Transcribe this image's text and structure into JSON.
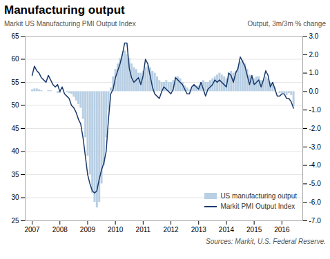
{
  "chart_data": {
    "type": "bar",
    "title": "Manufacturing output",
    "ylabel": "Markit US Manufacturing PMI Output Index",
    "y2label": "Output, 3m/3m % change",
    "source": "Sources: Markit, U.S. Federal Reserve.",
    "x": [
      2007.0,
      2007.083,
      2007.167,
      2007.25,
      2007.333,
      2007.417,
      2007.5,
      2007.583,
      2007.667,
      2007.75,
      2007.833,
      2007.917,
      2008.0,
      2008.083,
      2008.167,
      2008.25,
      2008.333,
      2008.417,
      2008.5,
      2008.583,
      2008.667,
      2008.75,
      2008.833,
      2008.917,
      2009.0,
      2009.083,
      2009.167,
      2009.25,
      2009.333,
      2009.417,
      2009.5,
      2009.583,
      2009.667,
      2009.75,
      2009.833,
      2009.917,
      2010.0,
      2010.083,
      2010.167,
      2010.25,
      2010.333,
      2010.417,
      2010.5,
      2010.583,
      2010.667,
      2010.75,
      2010.833,
      2010.917,
      2011.0,
      2011.083,
      2011.167,
      2011.25,
      2011.333,
      2011.417,
      2011.5,
      2011.583,
      2011.667,
      2011.75,
      2011.833,
      2011.917,
      2012.0,
      2012.083,
      2012.167,
      2012.25,
      2012.333,
      2012.417,
      2012.5,
      2012.583,
      2012.667,
      2012.75,
      2012.833,
      2012.917,
      2013.0,
      2013.083,
      2013.167,
      2013.25,
      2013.333,
      2013.417,
      2013.5,
      2013.583,
      2013.667,
      2013.75,
      2013.833,
      2013.917,
      2014.0,
      2014.083,
      2014.167,
      2014.25,
      2014.333,
      2014.417,
      2014.5,
      2014.583,
      2014.667,
      2014.75,
      2014.833,
      2014.917,
      2015.0,
      2015.083,
      2015.167,
      2015.25,
      2015.333,
      2015.417,
      2015.5,
      2015.583,
      2015.667,
      2015.75,
      2015.833,
      2015.917,
      2016.0,
      2016.083,
      2016.167,
      2016.25,
      2016.333,
      2016.417
    ],
    "series": [
      {
        "name": "US manufacturing output",
        "type": "bar",
        "axis": "y2",
        "color": "#b8cfe4",
        "values": [
          0.1,
          0.15,
          0.15,
          0.1,
          0.05,
          0.0,
          0.0,
          0.05,
          0.05,
          0.0,
          0.0,
          -0.1,
          -0.1,
          0.0,
          0.0,
          -0.05,
          -0.1,
          -0.15,
          -0.3,
          -0.5,
          -0.7,
          -0.9,
          -1.5,
          -2.5,
          -3.5,
          -4.5,
          -5.5,
          -6.0,
          -6.3,
          -6.0,
          -5.0,
          -4.0,
          -2.5,
          -1.0,
          0.2,
          0.8,
          1.2,
          1.5,
          1.8,
          2.0,
          2.2,
          2.0,
          1.8,
          1.5,
          1.3,
          1.2,
          1.0,
          1.0,
          1.1,
          1.3,
          1.4,
          1.3,
          1.1,
          1.0,
          0.8,
          0.6,
          0.5,
          0.5,
          0.6,
          0.5,
          0.5,
          0.6,
          0.8,
          0.8,
          0.7,
          0.5,
          0.3,
          0.2,
          0.1,
          0.2,
          0.3,
          0.3,
          0.3,
          0.5,
          0.6,
          0.5,
          0.5,
          0.6,
          0.7,
          0.8,
          0.9,
          1.0,
          0.9,
          0.8,
          0.7,
          1.0,
          1.1,
          1.0,
          1.1,
          1.3,
          1.6,
          1.7,
          1.5,
          1.2,
          0.9,
          0.8,
          0.7,
          0.8,
          0.8,
          0.6,
          0.6,
          0.8,
          0.7,
          0.5,
          0.4,
          0.2,
          0.0,
          -0.1,
          -0.1,
          -0.1,
          -0.2,
          -0.1,
          -0.2,
          -0.8
        ]
      },
      {
        "name": "Markit PMI Output Index",
        "type": "line",
        "color": "#1a3a6b",
        "values": [
          56.5,
          58.5,
          57.5,
          57.0,
          56.0,
          55.5,
          55.0,
          56.5,
          55.5,
          54.5,
          54.0,
          54.5,
          53.0,
          54.0,
          52.5,
          52.0,
          51.5,
          50.0,
          49.5,
          48.5,
          47.0,
          46.0,
          43.0,
          39.0,
          35.0,
          33.0,
          31.5,
          31.0,
          31.5,
          34.0,
          36.0,
          37.5,
          40.0,
          47.0,
          52.5,
          53.5,
          56.0,
          57.5,
          59.0,
          61.0,
          63.5,
          63.5,
          58.0,
          56.0,
          55.0,
          55.5,
          56.0,
          54.5,
          56.5,
          60.0,
          59.0,
          56.5,
          54.0,
          52.5,
          52.0,
          51.5,
          53.0,
          54.0,
          53.5,
          53.0,
          52.5,
          53.5,
          56.0,
          55.5,
          55.0,
          54.5,
          53.5,
          52.5,
          52.5,
          54.0,
          54.5,
          54.0,
          53.5,
          55.0,
          53.5,
          52.0,
          53.5,
          54.0,
          54.5,
          55.5,
          55.0,
          55.5,
          55.0,
          54.5,
          54.0,
          57.0,
          56.5,
          55.0,
          57.0,
          58.0,
          60.5,
          59.5,
          58.5,
          56.5,
          54.5,
          56.5,
          54.5,
          55.0,
          55.5,
          54.0,
          55.5,
          57.5,
          56.5,
          54.0,
          55.0,
          53.5,
          52.0,
          52.0,
          52.5,
          52.5,
          51.5,
          51.5,
          50.8,
          49.4
        ]
      }
    ],
    "xlim": [
      2006.75,
      2016.75
    ],
    "xticks": [
      2007,
      2008,
      2009,
      2010,
      2011,
      2012,
      2013,
      2014,
      2015,
      2016
    ],
    "ylim": [
      25,
      65
    ],
    "yticks": [
      25,
      30,
      35,
      40,
      45,
      50,
      55,
      60,
      65
    ],
    "y2lim": [
      -7.0,
      3.0
    ],
    "y2ticks": [
      {
        "value": -7.0,
        "label": "-7.0"
      },
      {
        "value": -6.0,
        "label": "-6.0"
      },
      {
        "value": -5.0,
        "label": "-5.0"
      },
      {
        "value": -4.0,
        "label": "-4.0"
      },
      {
        "value": -3.0,
        "label": "-3.0"
      },
      {
        "value": -2.0,
        "label": "-2.0"
      },
      {
        "value": -1.0,
        "label": "-1.0"
      },
      {
        "value": 0.0,
        "label": "0.0"
      },
      {
        "value": 1.0,
        "label": "1.0"
      },
      {
        "value": 2.0,
        "label": "2.0"
      },
      {
        "value": 3.0,
        "label": "3.0"
      }
    ],
    "grid": true,
    "legend": "lower right"
  }
}
